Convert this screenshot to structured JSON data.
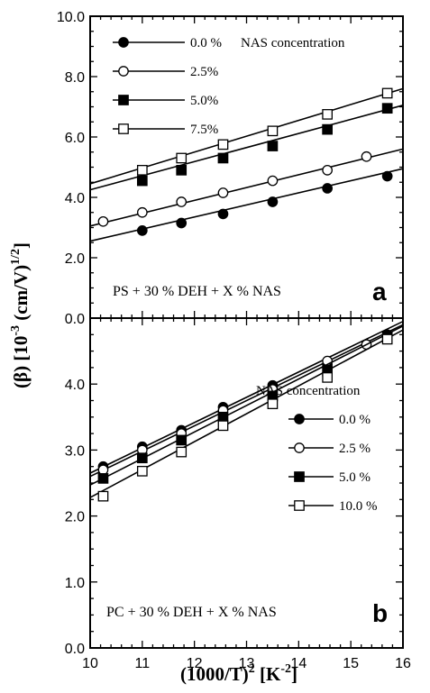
{
  "chart_data": [
    {
      "type": "line",
      "panel_label": "a",
      "annotation": "PS + 30 % DEH + X % NAS",
      "legend_title": "NAS concentration",
      "legend_position": "top-left",
      "xlim": [
        10,
        16
      ],
      "ylim": [
        0,
        10
      ],
      "x_ticks": [
        "10",
        "11",
        "12",
        "13",
        "14",
        "15",
        "16"
      ],
      "y_ticks": [
        "0.0",
        "2.0",
        "4.0",
        "6.0",
        "8.0",
        "10.0"
      ],
      "series": [
        {
          "name": "0.0 %",
          "marker": "filled-circle",
          "x": [
            11.0,
            11.75,
            12.55,
            13.5,
            14.55,
            15.7
          ],
          "y": [
            2.9,
            3.15,
            3.45,
            3.85,
            4.3,
            4.7
          ],
          "fit": [
            [
              10,
              2.55
            ],
            [
              16,
              4.95
            ]
          ]
        },
        {
          "name": "2.5%",
          "marker": "open-circle",
          "x": [
            10.25,
            11.0,
            11.75,
            12.55,
            13.5,
            14.55,
            15.3
          ],
          "y": [
            3.2,
            3.5,
            3.85,
            4.15,
            4.55,
            4.9,
            5.35
          ],
          "fit": [
            [
              10,
              3.05
            ],
            [
              16,
              5.6
            ]
          ]
        },
        {
          "name": "5.0%",
          "marker": "filled-square",
          "x": [
            11.0,
            11.75,
            12.55,
            13.5,
            14.55,
            15.7
          ],
          "y": [
            4.55,
            4.9,
            5.3,
            5.7,
            6.25,
            6.95
          ],
          "fit": [
            [
              10,
              4.25
            ],
            [
              16,
              7.05
            ]
          ]
        },
        {
          "name": "7.5%",
          "marker": "open-square",
          "x": [
            11.0,
            11.75,
            12.55,
            13.5,
            14.55,
            15.7
          ],
          "y": [
            4.9,
            5.3,
            5.75,
            6.2,
            6.75,
            7.45
          ],
          "fit": [
            [
              10,
              4.45
            ],
            [
              16,
              7.6
            ]
          ]
        }
      ]
    },
    {
      "type": "line",
      "panel_label": "b",
      "annotation": "PC + 30 % DEH + X % NAS",
      "legend_title": "NAS concentration",
      "legend_position": "center-right",
      "xlim": [
        10,
        16
      ],
      "ylim": [
        0,
        5
      ],
      "x_ticks": [
        "10",
        "11",
        "12",
        "13",
        "14",
        "15",
        "16"
      ],
      "y_ticks": [
        "0.0",
        "1.0",
        "2.0",
        "3.0",
        "4.0"
      ],
      "series": [
        {
          "name": "0.0 %",
          "marker": "filled-circle",
          "x": [
            10.25,
            11.0,
            11.75,
            12.55,
            13.5,
            14.55,
            15.7
          ],
          "y": [
            2.75,
            3.05,
            3.3,
            3.65,
            3.98,
            4.3,
            4.75
          ],
          "fit": [
            [
              10,
              2.65
            ],
            [
              16,
              4.95
            ]
          ]
        },
        {
          "name": "2.5 %",
          "marker": "open-circle",
          "x": [
            10.25,
            11.0,
            11.75,
            12.55,
            13.5,
            14.55,
            15.3
          ],
          "y": [
            2.7,
            3.0,
            3.25,
            3.6,
            3.92,
            4.35,
            4.6
          ],
          "fit": [
            [
              10,
              2.6
            ],
            [
              16,
              4.9
            ]
          ]
        },
        {
          "name": "5.0 %",
          "marker": "filled-square",
          "x": [
            10.25,
            11.0,
            11.75,
            12.55,
            13.5,
            14.55,
            15.7
          ],
          "y": [
            2.57,
            2.88,
            3.15,
            3.5,
            3.82,
            4.2,
            4.72
          ],
          "fit": [
            [
              10,
              2.47
            ],
            [
              16,
              4.88
            ]
          ]
        },
        {
          "name": "10.0 %",
          "marker": "open-square",
          "x": [
            10.25,
            11.0,
            11.75,
            12.55,
            13.5,
            14.55,
            15.7
          ],
          "y": [
            2.3,
            2.68,
            2.97,
            3.37,
            3.7,
            4.1,
            4.68
          ],
          "fit": [
            [
              10,
              2.28
            ],
            [
              16,
              4.82
            ]
          ]
        }
      ]
    }
  ],
  "shared_axes": {
    "xlabel_base": "(1000/T)",
    "xlabel_exp": "2",
    "xlabel_unit_open": " [K",
    "xlabel_unit_exp": "-2",
    "xlabel_unit_close": "]",
    "ylabel_left": "(β)  [10",
    "ylabel_exp": "-3",
    "ylabel_mid": "  (cm/V)",
    "ylabel_exp2": "1/2",
    "ylabel_close": "]"
  }
}
